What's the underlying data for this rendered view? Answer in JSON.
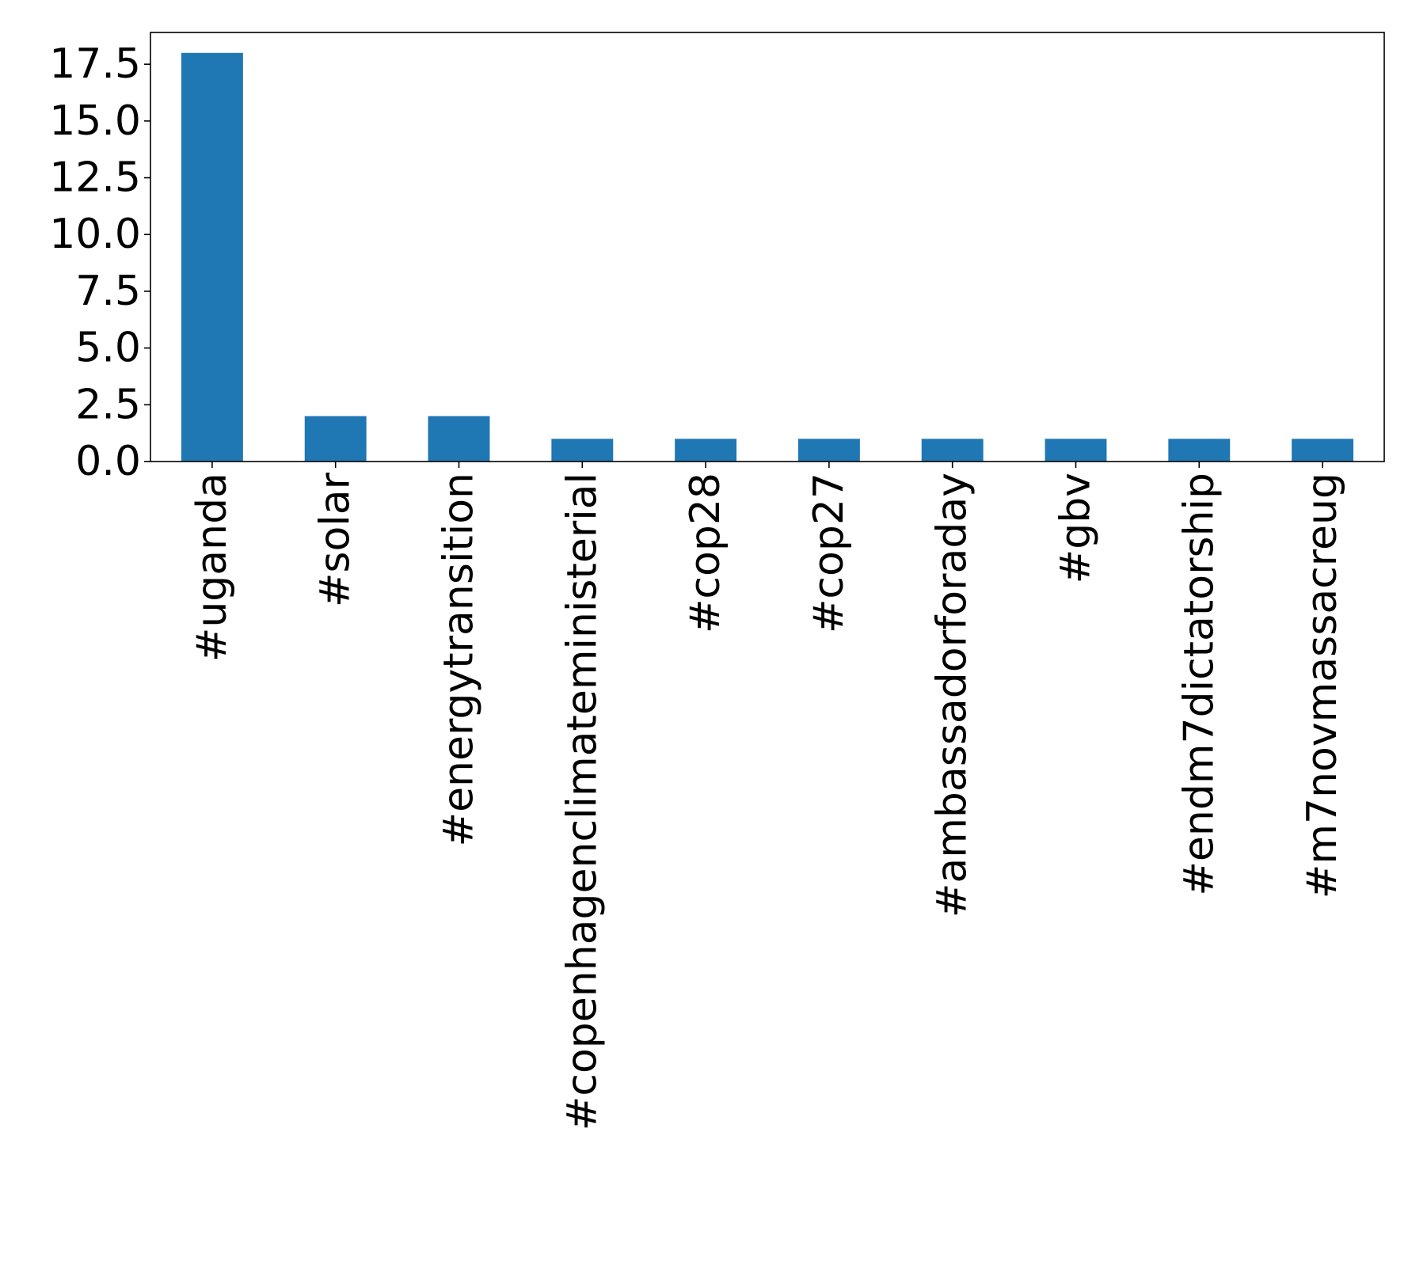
{
  "chart_data": {
    "type": "bar",
    "title": "",
    "xlabel": "",
    "ylabel": "",
    "categories": [
      "#uganda",
      "#solar",
      "#energytransition",
      "#copenhagenclimateministerial",
      "#cop28",
      "#cop27",
      "#ambassadorforaday",
      "#gbv",
      "#endm7dictatorship",
      "#m7novmassacreug"
    ],
    "values": [
      18,
      2,
      2,
      1,
      1,
      1,
      1,
      1,
      1,
      1
    ],
    "ylim": [
      0,
      18.9
    ],
    "yticks": [
      0.0,
      2.5,
      5.0,
      7.5,
      10.0,
      12.5,
      15.0,
      17.5
    ],
    "ytick_labels": [
      "0.0",
      "2.5",
      "5.0",
      "7.5",
      "10.0",
      "12.5",
      "15.0",
      "17.5"
    ],
    "bar_color": "#1f77b4",
    "grid": false,
    "legend": "none"
  }
}
